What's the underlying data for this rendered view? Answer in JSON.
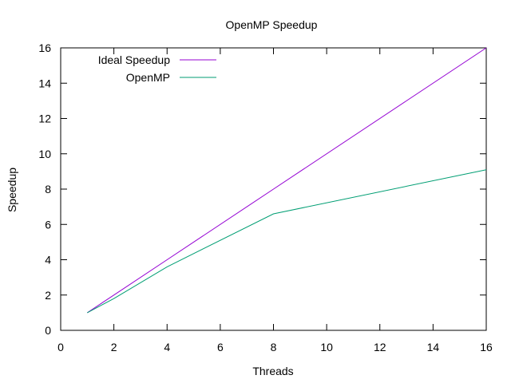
{
  "chart_data": {
    "type": "line",
    "title": "OpenMP Speedup",
    "xlabel": "Threads",
    "ylabel": "Speedup",
    "xlim": [
      0,
      16
    ],
    "ylim": [
      0,
      16
    ],
    "xticks": [
      0,
      2,
      4,
      6,
      8,
      10,
      12,
      14,
      16
    ],
    "yticks": [
      0,
      2,
      4,
      6,
      8,
      10,
      12,
      14,
      16
    ],
    "grid": false,
    "legend_position": "top-left",
    "series": [
      {
        "name": "Ideal Speedup",
        "color": "#9400d3",
        "x": [
          1,
          2,
          4,
          8,
          16
        ],
        "y": [
          1,
          2,
          4,
          8,
          16
        ]
      },
      {
        "name": "OpenMP",
        "color": "#009e73",
        "x": [
          1,
          2,
          4,
          8,
          16
        ],
        "y": [
          1,
          1.8,
          3.6,
          6.6,
          9.1
        ]
      }
    ]
  }
}
